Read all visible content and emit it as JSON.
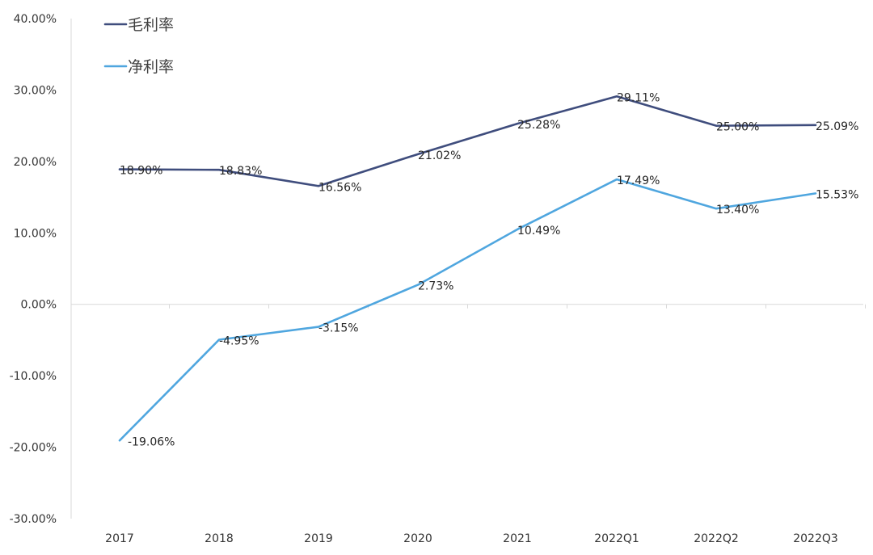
{
  "chart_data": {
    "type": "line",
    "title": "",
    "xlabel": "",
    "ylabel": "",
    "categories": [
      "2017",
      "2018",
      "2019",
      "2020",
      "2021",
      "2022Q1",
      "2022Q2",
      "2022Q3"
    ],
    "ylim": [
      -30,
      40
    ],
    "yticks": [
      -30,
      -20,
      -10,
      0,
      10,
      20,
      30,
      40
    ],
    "ytick_labels": [
      "-30.00%",
      "-20.00%",
      "-10.00%",
      "0.00%",
      "10.00%",
      "20.00%",
      "30.00%",
      "40.00%"
    ],
    "legend_position": "top-left",
    "grid": false,
    "series": [
      {
        "name": "毛利率",
        "color": "#3f4d7d",
        "values": [
          18.9,
          18.83,
          16.56,
          21.02,
          25.28,
          29.11,
          25.0,
          25.09
        ],
        "labels": [
          "18.90%",
          "18.83%",
          "16.56%",
          "21.02%",
          "25.28%",
          "29.11%",
          "25.00%",
          "25.09%"
        ]
      },
      {
        "name": "净利率",
        "color": "#4fa6df",
        "values": [
          -19.06,
          -4.95,
          -3.15,
          2.73,
          10.49,
          17.49,
          13.4,
          15.53
        ],
        "labels": [
          "-19.06%",
          "-4.95%",
          "-3.15%",
          "2.73%",
          "10.49%",
          "17.49%",
          "13.40%",
          "15.53%"
        ]
      }
    ]
  }
}
